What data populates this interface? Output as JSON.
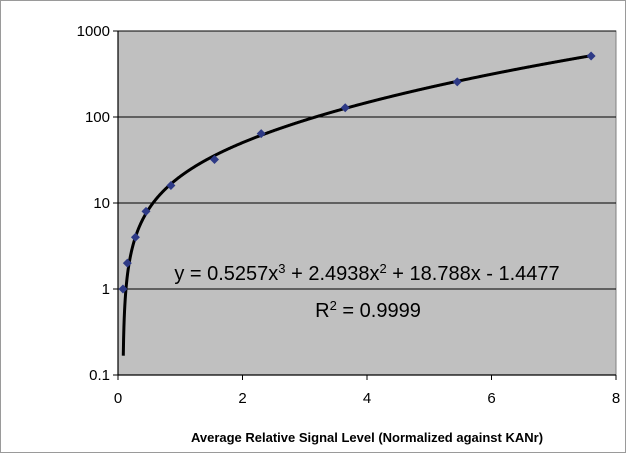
{
  "chart_data": {
    "type": "scatter",
    "title": "",
    "xlabel": "Average Relative Signal Level (Normalized against KANr)",
    "ylabel": "",
    "xlim": [
      0,
      8
    ],
    "ylim": [
      0.1,
      1000
    ],
    "y_scale": "log",
    "grid": "horizontal major gridlines",
    "legend": "none",
    "x_ticks": [
      "0",
      "2",
      "4",
      "6",
      "8"
    ],
    "y_ticks": [
      "0.1",
      "1",
      "10",
      "100",
      "1000"
    ],
    "series": [
      {
        "x": [
          0.08,
          0.15,
          0.28,
          0.45,
          0.85,
          1.55,
          2.3,
          3.65,
          5.45,
          7.6
        ],
        "y": [
          1,
          2,
          4,
          8,
          16,
          32,
          64,
          128,
          256,
          512
        ]
      }
    ],
    "trendline": {
      "type": "polynomial",
      "coefficients": [
        0.5257,
        2.4938,
        18.788,
        -1.4477
      ],
      "equation_text": "y = 0.5257x3 + 2.4938x2 + 18.788x - 1.4477",
      "r2_text": "R2 = 0.9999"
    },
    "colors": {
      "plot_background": "#c0c0c0",
      "marker": "#2e3a86",
      "trendline": "#000000",
      "gridline": "#000000"
    }
  }
}
